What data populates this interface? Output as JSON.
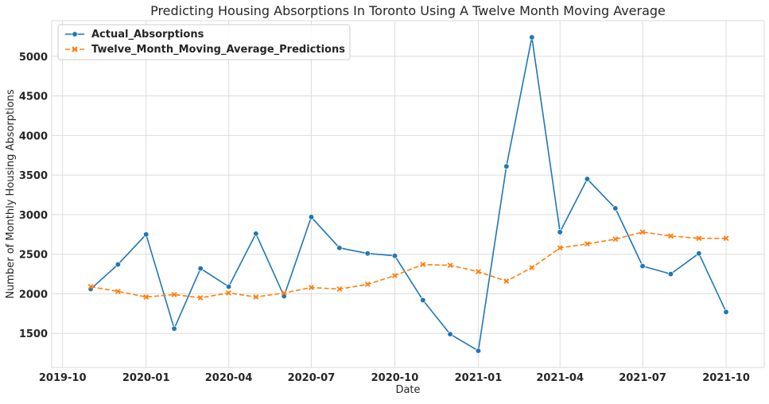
{
  "chart_data": {
    "type": "line",
    "title": "Predicting Housing Absorptions In Toronto Using A Twelve Month Moving Average",
    "xlabel": "Date",
    "ylabel": "Number of Monthly Housing Absorptions",
    "x_tick_labels": [
      "2019-10",
      "2020-01",
      "2020-04",
      "2020-07",
      "2020-10",
      "2021-01",
      "2021-04",
      "2021-07",
      "2021-10"
    ],
    "y_tick_labels": [
      "1500",
      "2000",
      "2500",
      "3000",
      "3500",
      "4000",
      "4500",
      "5000"
    ],
    "y_ticks": [
      1500,
      2000,
      2500,
      3000,
      3500,
      4000,
      4500,
      5000
    ],
    "xlim": [
      "2019-09-19",
      "2021-11-12"
    ],
    "ylim": [
      1070,
      5450
    ],
    "grid": true,
    "legend_position": "top-left",
    "x": [
      "2019-11-01",
      "2019-12-01",
      "2020-01-01",
      "2020-02-01",
      "2020-03-01",
      "2020-04-01",
      "2020-05-01",
      "2020-06-01",
      "2020-07-01",
      "2020-08-01",
      "2020-09-01",
      "2020-10-01",
      "2020-11-01",
      "2020-12-01",
      "2021-01-01",
      "2021-02-01",
      "2021-03-01",
      "2021-04-01",
      "2021-05-01",
      "2021-06-01",
      "2021-07-01",
      "2021-08-01",
      "2021-09-01",
      "2021-10-01"
    ],
    "series": [
      {
        "name": "Actual_Absorptions",
        "color": "#1f77b4",
        "marker": "circle",
        "line_style": "solid",
        "values": [
          2060,
          2370,
          2750,
          1560,
          2320,
          2090,
          2760,
          1970,
          2970,
          2580,
          2510,
          2480,
          1920,
          1490,
          1280,
          3610,
          5240,
          2780,
          3450,
          3080,
          2350,
          2250,
          2510,
          1770
        ]
      },
      {
        "name": "Twelve_Month_Moving_Average_Predictions",
        "color": "#ff7f0e",
        "marker": "x",
        "line_style": "dashed",
        "values": [
          2090,
          2030,
          1960,
          1990,
          1950,
          2010,
          1960,
          2010,
          2080,
          2060,
          2120,
          2230,
          2370,
          2360,
          2280,
          2160,
          2330,
          2580,
          2630,
          2690,
          2780,
          2730,
          2700,
          2700
        ]
      }
    ]
  }
}
